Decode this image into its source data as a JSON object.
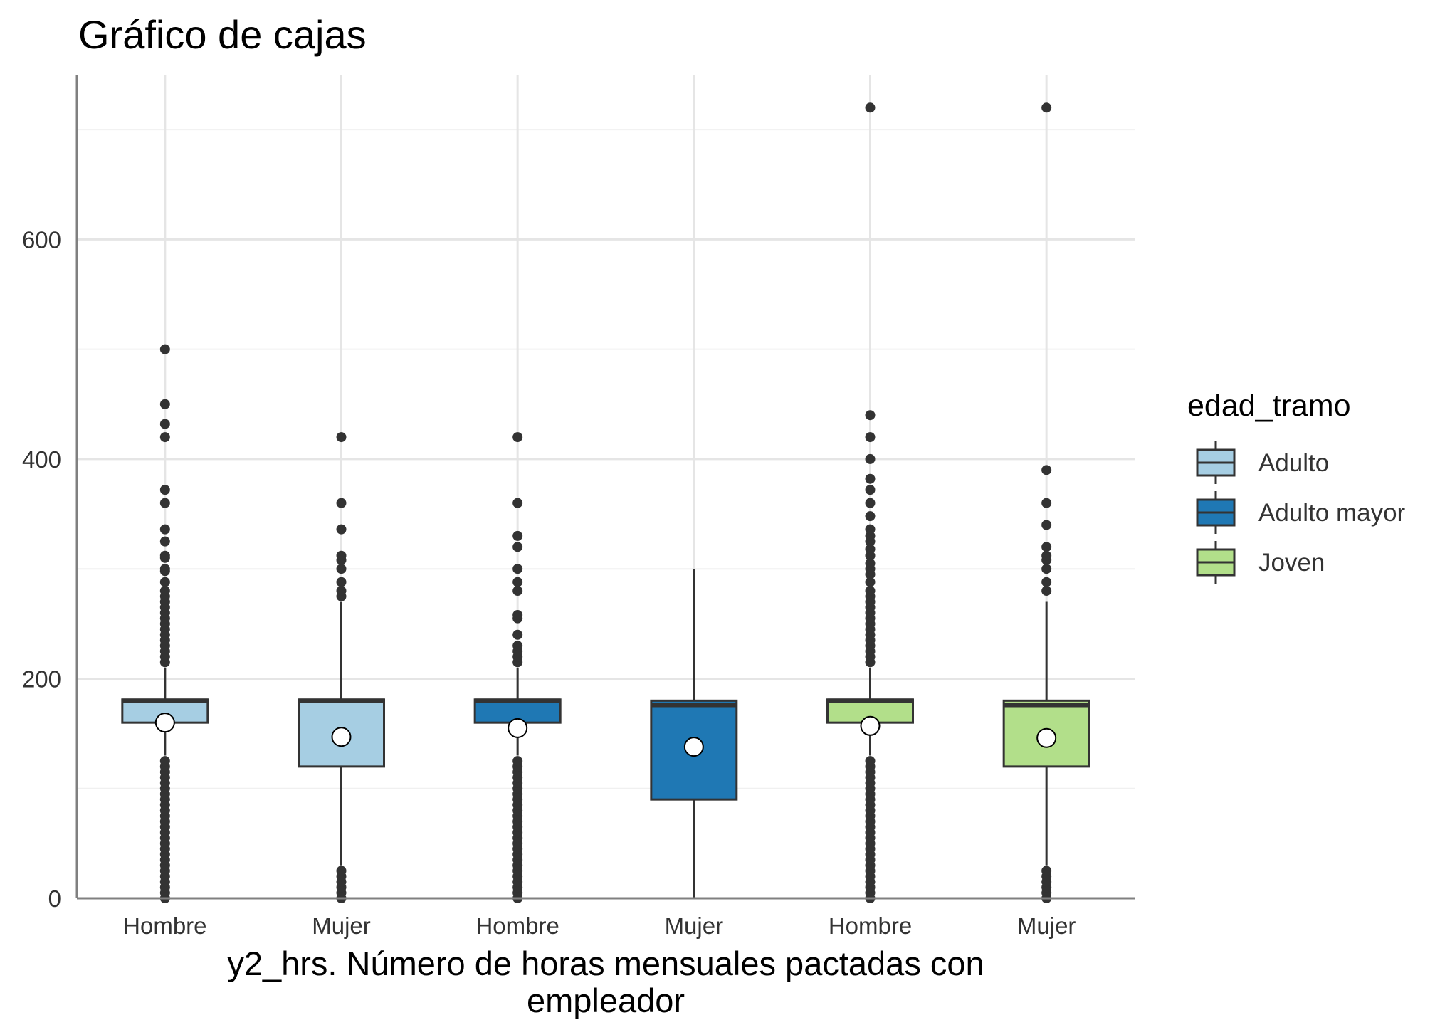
{
  "chart_data": {
    "type": "box",
    "title": "Gráfico de cajas",
    "xlabel": [
      "y2_hrs. Número de horas mensuales pactadas con",
      "empleador"
    ],
    "ylabel": "",
    "ylim": [
      0,
      750
    ],
    "yticks": [
      0,
      200,
      400,
      600
    ],
    "grid": true,
    "legend": {
      "title": "edad_tramo",
      "position": "right",
      "entries": [
        {
          "label": "Adulto",
          "color": "#A6CEE3"
        },
        {
          "label": "Adulto mayor",
          "color": "#1F78B4"
        },
        {
          "label": "Joven",
          "color": "#B2DF8A"
        }
      ]
    },
    "categories": [
      "Hombre",
      "Mujer",
      "Hombre",
      "Mujer",
      "Hombre",
      "Mujer"
    ],
    "boxes": [
      {
        "group": "Adulto",
        "category": "Hombre",
        "q1": 160,
        "median": 180,
        "q3": 181,
        "lower_whisker": 130,
        "upper_whisker": 210,
        "mean": 160,
        "outliers_high": [
          215,
          220,
          225,
          230,
          235,
          240,
          245,
          250,
          255,
          260,
          265,
          270,
          275,
          280,
          288,
          298,
          300,
          310,
          312,
          325,
          336,
          360,
          372,
          420,
          432,
          450,
          500
        ],
        "outliers_low": [
          0,
          5,
          10,
          15,
          20,
          25,
          30,
          35,
          40,
          45,
          50,
          55,
          60,
          65,
          70,
          75,
          80,
          85,
          90,
          95,
          100,
          105,
          110,
          115,
          120,
          125
        ]
      },
      {
        "group": "Adulto",
        "category": "Mujer",
        "q1": 120,
        "median": 180,
        "q3": 181,
        "lower_whisker": 30,
        "upper_whisker": 270,
        "mean": 147,
        "outliers_high": [
          275,
          280,
          288,
          300,
          308,
          312,
          336,
          360,
          420
        ],
        "outliers_low": [
          0,
          5,
          10,
          15,
          20,
          25
        ]
      },
      {
        "group": "Adulto mayor",
        "category": "Hombre",
        "q1": 160,
        "median": 180,
        "q3": 181,
        "lower_whisker": 130,
        "upper_whisker": 210,
        "mean": 155,
        "outliers_high": [
          215,
          220,
          225,
          230,
          240,
          255,
          258,
          280,
          288,
          300,
          320,
          330,
          360,
          420
        ],
        "outliers_low": [
          0,
          5,
          10,
          15,
          20,
          25,
          30,
          35,
          40,
          45,
          50,
          55,
          60,
          65,
          70,
          75,
          80,
          85,
          90,
          95,
          100,
          105,
          110,
          115,
          120,
          125
        ]
      },
      {
        "group": "Adulto mayor",
        "category": "Mujer",
        "q1": 90,
        "median": 176,
        "q3": 180,
        "lower_whisker": 0,
        "upper_whisker": 300,
        "mean": 138,
        "outliers_high": [],
        "outliers_low": []
      },
      {
        "group": "Joven",
        "category": "Hombre",
        "q1": 160,
        "median": 180,
        "q3": 181,
        "lower_whisker": 130,
        "upper_whisker": 210,
        "mean": 157,
        "outliers_high": [
          215,
          220,
          225,
          230,
          235,
          240,
          245,
          250,
          255,
          260,
          265,
          270,
          275,
          280,
          288,
          295,
          300,
          305,
          312,
          318,
          325,
          330,
          336,
          348,
          360,
          372,
          382,
          400,
          420,
          440,
          720
        ],
        "outliers_low": [
          0,
          5,
          10,
          15,
          20,
          25,
          30,
          35,
          40,
          45,
          50,
          55,
          60,
          65,
          70,
          75,
          80,
          85,
          90,
          95,
          100,
          105,
          110,
          115,
          120,
          125
        ]
      },
      {
        "group": "Joven",
        "category": "Mujer",
        "q1": 120,
        "median": 176,
        "q3": 180,
        "lower_whisker": 30,
        "upper_whisker": 270,
        "mean": 146,
        "outliers_high": [
          280,
          288,
          300,
          308,
          312,
          320,
          340,
          360,
          390,
          720
        ],
        "outliers_low": [
          0,
          5,
          10,
          15,
          20,
          25
        ]
      }
    ]
  }
}
